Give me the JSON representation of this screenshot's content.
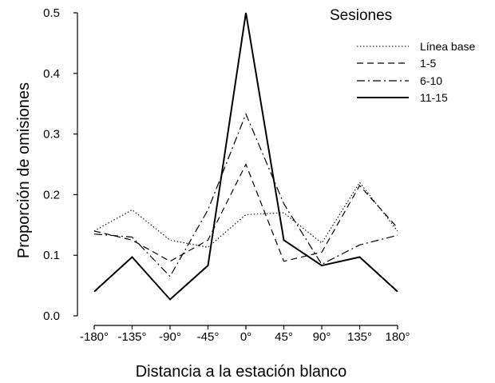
{
  "chart_data": {
    "type": "line",
    "title": "",
    "xlabel": "Distancia a la estación blanco",
    "ylabel": "Proporción de omisiones",
    "categories": [
      "-180°",
      "-135°",
      "-90°",
      "-45°",
      "0°",
      "45°",
      "90°",
      "135°",
      "180°"
    ],
    "yticks": [
      "0.0",
      "0.1",
      "0.2",
      "0.3",
      "0.4",
      "0.5"
    ],
    "ylim": [
      0,
      0.5
    ],
    "grid": false,
    "legend": {
      "title": "Sesiones",
      "position": "top-right"
    },
    "series": [
      {
        "name": "Línea base",
        "style": "dotted",
        "values": [
          0.14,
          0.175,
          0.125,
          0.113,
          0.167,
          0.17,
          0.12,
          0.22,
          0.14
        ]
      },
      {
        "name": "1-5",
        "style": "dashed",
        "values": [
          0.14,
          0.125,
          0.09,
          0.125,
          0.25,
          0.09,
          0.105,
          0.215,
          0.145
        ]
      },
      {
        "name": "6-10",
        "style": "dashdot",
        "values": [
          0.135,
          0.13,
          0.065,
          0.175,
          0.333,
          0.185,
          0.085,
          0.117,
          0.133
        ]
      },
      {
        "name": "11-15",
        "style": "solid",
        "values": [
          0.04,
          0.097,
          0.027,
          0.083,
          0.5,
          0.125,
          0.083,
          0.097,
          0.04
        ]
      }
    ]
  }
}
